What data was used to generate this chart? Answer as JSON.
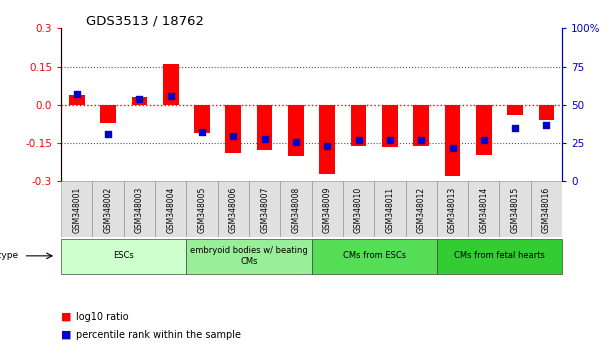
{
  "title": "GDS3513 / 18762",
  "samples": [
    "GSM348001",
    "GSM348002",
    "GSM348003",
    "GSM348004",
    "GSM348005",
    "GSM348006",
    "GSM348007",
    "GSM348008",
    "GSM348009",
    "GSM348010",
    "GSM348011",
    "GSM348012",
    "GSM348013",
    "GSM348014",
    "GSM348015",
    "GSM348016"
  ],
  "log10_ratio": [
    0.04,
    -0.07,
    0.03,
    0.16,
    -0.11,
    -0.19,
    -0.175,
    -0.2,
    -0.27,
    -0.16,
    -0.165,
    -0.16,
    -0.28,
    -0.195,
    -0.04,
    -0.06
  ],
  "percentile_rank": [
    57,
    31,
    54,
    56,
    32,
    30,
    28,
    26,
    23,
    27,
    27,
    27,
    22,
    27,
    35,
    37
  ],
  "ylim_left": [
    -0.3,
    0.3
  ],
  "ylim_right": [
    0,
    100
  ],
  "left_yticks": [
    -0.3,
    -0.15,
    0.0,
    0.15,
    0.3
  ],
  "right_yticks": [
    0,
    25,
    50,
    75,
    100
  ],
  "bar_color": "#FF0000",
  "point_color": "#0000CC",
  "zero_line_color": "#FF0000",
  "dotted_color": "#555555",
  "cell_types": [
    {
      "label": "ESCs",
      "start": 0,
      "end": 3,
      "color": "#ccffcc"
    },
    {
      "label": "embryoid bodies w/ beating\nCMs",
      "start": 4,
      "end": 7,
      "color": "#99ee99"
    },
    {
      "label": "CMs from ESCs",
      "start": 8,
      "end": 11,
      "color": "#55dd55"
    },
    {
      "label": "CMs from fetal hearts",
      "start": 12,
      "end": 15,
      "color": "#33cc33"
    }
  ],
  "legend_bar_label": "log10 ratio",
  "legend_point_label": "percentile rank within the sample",
  "left_axis_color": "#FF0000",
  "right_axis_color": "#0000CC",
  "bar_width": 0.5
}
